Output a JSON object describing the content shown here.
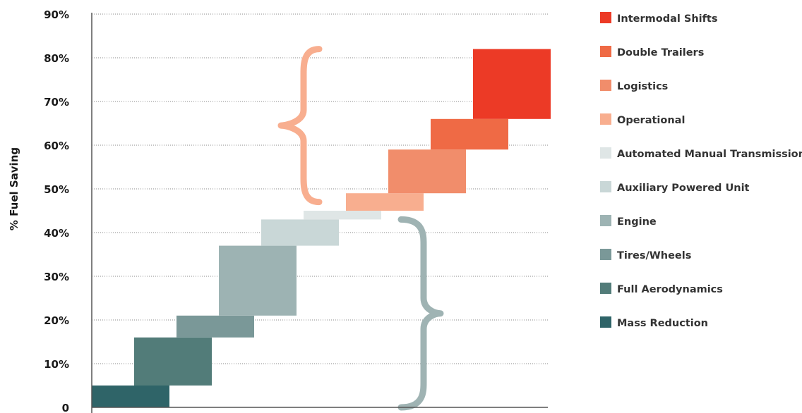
{
  "chart_data": {
    "type": "bar",
    "subtype": "waterfall",
    "ylabel": "% Fuel Saving",
    "xlabel": "",
    "ylim": [
      0,
      90
    ],
    "y_ticks": [
      "0",
      "10%",
      "20%",
      "30%",
      "40%",
      "50%",
      "60%",
      "70%",
      "80%",
      "90%"
    ],
    "grid": true,
    "legend_position": "right",
    "series": [
      {
        "name": "Mass Reduction",
        "start": 0,
        "end": 5,
        "color": "#2f6468"
      },
      {
        "name": "Full Aerodynamics",
        "start": 5,
        "end": 16,
        "color": "#527c79"
      },
      {
        "name": "Tires/Wheels",
        "start": 16,
        "end": 21,
        "color": "#7a9898"
      },
      {
        "name": "Engine",
        "start": 21,
        "end": 37,
        "color": "#9db3b3"
      },
      {
        "name": "Auxiliary Powered Unit",
        "start": 37,
        "end": 43,
        "color": "#c9d7d7"
      },
      {
        "name": "Automated Manual Transmission",
        "start": 43,
        "end": 45,
        "color": "#dfe6e6"
      },
      {
        "name": "Operational",
        "start": 45,
        "end": 49,
        "color": "#f8ae8f"
      },
      {
        "name": "Logistics",
        "start": 49,
        "end": 59,
        "color": "#f18d6b"
      },
      {
        "name": "Double Trailers",
        "start": 59,
        "end": 66,
        "color": "#ef6a45"
      },
      {
        "name": "Intermodal Shifts",
        "start": 66,
        "end": 82,
        "color": "#ec3a26"
      }
    ],
    "braces": [
      {
        "group": "technology",
        "from": 0,
        "to": 43,
        "color": "#9fb3b3"
      },
      {
        "group": "operational",
        "from": 47,
        "to": 82,
        "color": "#f8ae8f"
      }
    ]
  }
}
